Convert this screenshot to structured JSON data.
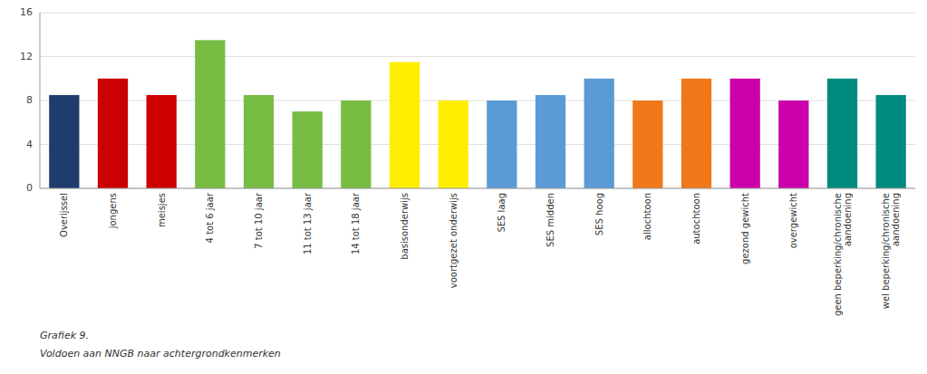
{
  "chart_data": {
    "type": "bar",
    "title": "Grafiek 9.",
    "subtitle": "Voldoen aan NNGB naar achtergrondkenmerken",
    "categories": [
      "Overijssel",
      "jongens",
      "meisjes",
      "4 tot 6 jaar",
      "7 tot 10 jaar",
      "11 tot 13 jaar",
      "14 tot 18 jaar",
      "basisonderwijs",
      "voortgezet onderwijs",
      "SES laag",
      "SES midden",
      "SES hoog",
      "allochtoon",
      "autochtoon",
      "gezond gewicht",
      "overgewicht",
      "geen beperking/chronische\naandoening",
      "wel beperking/chronische\naandoening"
    ],
    "values": [
      8.5,
      10.0,
      8.5,
      13.5,
      8.5,
      7.0,
      8.0,
      11.5,
      8.0,
      8.0,
      8.5,
      10.0,
      8.0,
      10.0,
      10.0,
      8.0,
      10.0,
      8.5
    ],
    "colors": [
      "#1f3c6e",
      "#cc0000",
      "#cc0000",
      "#77bc43",
      "#77bc43",
      "#77bc43",
      "#77bc43",
      "#ffee00",
      "#ffee00",
      "#5b9bd5",
      "#5b9bd5",
      "#5b9bd5",
      "#f07818",
      "#f07818",
      "#cc00aa",
      "#cc00aa",
      "#008b80",
      "#008b80"
    ],
    "ylim": [
      0,
      16
    ],
    "yticks": [
      0,
      4,
      8,
      12,
      16
    ],
    "grid": true
  }
}
